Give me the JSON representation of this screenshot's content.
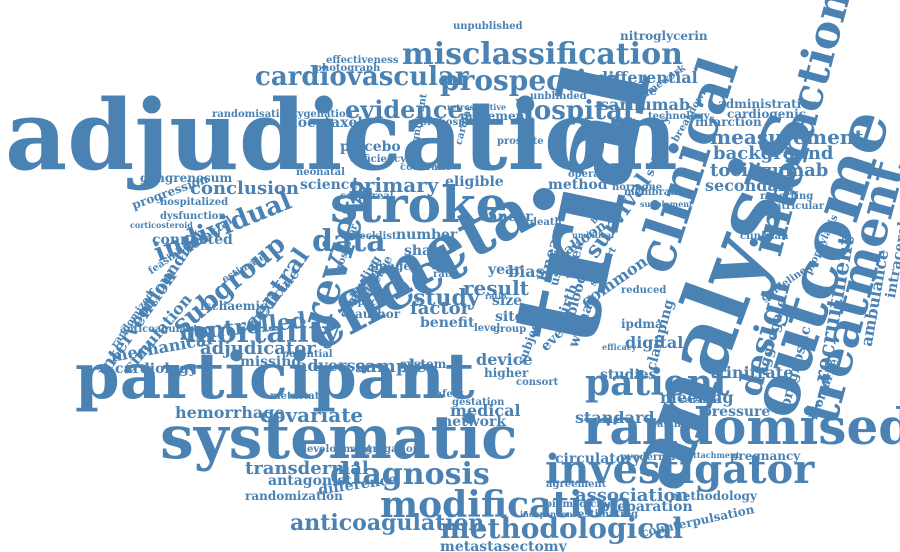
{
  "colors": {
    "word": "#4a82b4",
    "background": "#ffffff"
  },
  "words": [
    "adjudication",
    "trial",
    "analysis",
    "meta",
    "effect",
    "participant",
    "systematic",
    "outcome",
    "randomised",
    "treatment",
    "clinical",
    "stroke",
    "review",
    "interaction",
    "investigator",
    "patient",
    "assessment",
    "modification",
    "methodological",
    "misclassification",
    "prospective",
    "cardiovascular",
    "data",
    "mortality",
    "individual",
    "subgroup",
    "central",
    "hospital",
    "evidence",
    "diagnosis",
    "anticoagulation",
    "design",
    "survival",
    "controlled",
    "recruitment",
    "measurement",
    "background",
    "tocilizumab",
    "secondary",
    "transdermal",
    "covariate",
    "adjudicator",
    "metastasectomy",
    "association",
    "conclusion",
    "primary",
    "sarilumab",
    "differential",
    "prehospital",
    "docetaxel",
    "photograph",
    "hemorrhage",
    "adverse",
    "sample",
    "standard",
    "network",
    "medical",
    "meeting",
    "trinitrate",
    "pressure",
    "aggregate",
    "prognostic",
    "biomarker",
    "ambulance",
    "intracerebral",
    "reporting",
    "ventricular",
    "administration",
    "cardiogenic",
    "infarction",
    "available",
    "framework",
    "nitroglycerin",
    "unpublished",
    "effectiveness",
    "unblinded",
    "movement",
    "oxygenation",
    "significant",
    "placebo",
    "deficiency",
    "randomisation",
    "gangrenosum",
    "progression",
    "hospitalized",
    "dysfunction",
    "corticosteroid",
    "colorectal",
    "feasibility",
    "estimate",
    "confounding",
    "intervention",
    "simulation",
    "randomized",
    "cardiology",
    "mechanical",
    "anticoagulant",
    "ischaemic",
    "medicine",
    "missing",
    "potential",
    "metastatic",
    "antagonist",
    "randomization",
    "difference",
    "preparation",
    "counterpulsation",
    "methodology",
    "pregnancy",
    "attachment",
    "circulatory",
    "pyoderma",
    "crossover",
    "science",
    "neonatal",
    "corporeal",
    "cochrane",
    "eligible",
    "method",
    "number",
    "checklist",
    "sham",
    "image",
    "blinding",
    "disease",
    "specific",
    "author",
    "factor",
    "benefit",
    "study",
    "result",
    "year",
    "bias",
    "ratio",
    "size",
    "site",
    "level",
    "group",
    "subject",
    "birth",
    "event",
    "woman",
    "common",
    "blood",
    "usual",
    "week",
    "cancer",
    "death",
    "balloon",
    "linear",
    "digital",
    "ipdma",
    "reduced",
    "clamping",
    "studies",
    "system",
    "device",
    "higher",
    "consort",
    "gestation",
    "safety",
    "development",
    "aggregation",
    "clinician",
    "summary",
    "membrane",
    "hormone",
    "operative",
    "breakdown",
    "technology",
    "retrospective",
    "guideline",
    "biomedicine",
    "cardiac",
    "prostate",
    "connected",
    "sensitive",
    "balanced",
    "support",
    "analyse",
    "estimating",
    "agreement",
    "independent",
    "efficacy",
    "umbilical",
    "prophylaxis",
    "supplement",
    "bridge",
    "ratio"
  ]
}
